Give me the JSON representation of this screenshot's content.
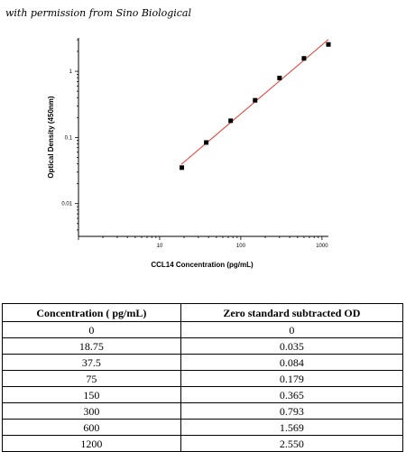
{
  "note": "with permission from Sino Biological",
  "chart_data": {
    "type": "scatter",
    "scale": "log-log",
    "xlabel": "CCL14 Concentration (pg/mL)",
    "ylabel": "Optical Density (450nm)",
    "x_ticks": [
      10,
      100,
      1000
    ],
    "y_ticks": [
      0.01,
      0.1,
      1
    ],
    "xlim": [
      1,
      1200
    ],
    "ylim": [
      0.0032,
      3.2
    ],
    "points": {
      "x": [
        18.75,
        37.5,
        75,
        150,
        300,
        600,
        1200
      ],
      "y": [
        0.035,
        0.084,
        0.179,
        0.365,
        0.793,
        1.569,
        2.55
      ]
    },
    "fit_line": {
      "color": "#e8382e",
      "x_range": [
        18.75,
        1200
      ]
    },
    "marker_color": "#000000",
    "grid": false
  },
  "table": {
    "headers": [
      "Concentration ( pg/mL)",
      "Zero standard subtracted OD"
    ],
    "rows": [
      [
        "0",
        "0"
      ],
      [
        "18.75",
        "0.035"
      ],
      [
        "37.5",
        "0.084"
      ],
      [
        "75",
        "0.179"
      ],
      [
        "150",
        "0.365"
      ],
      [
        "300",
        "0.793"
      ],
      [
        "600",
        "1.569"
      ],
      [
        "1200",
        "2.550"
      ]
    ]
  }
}
